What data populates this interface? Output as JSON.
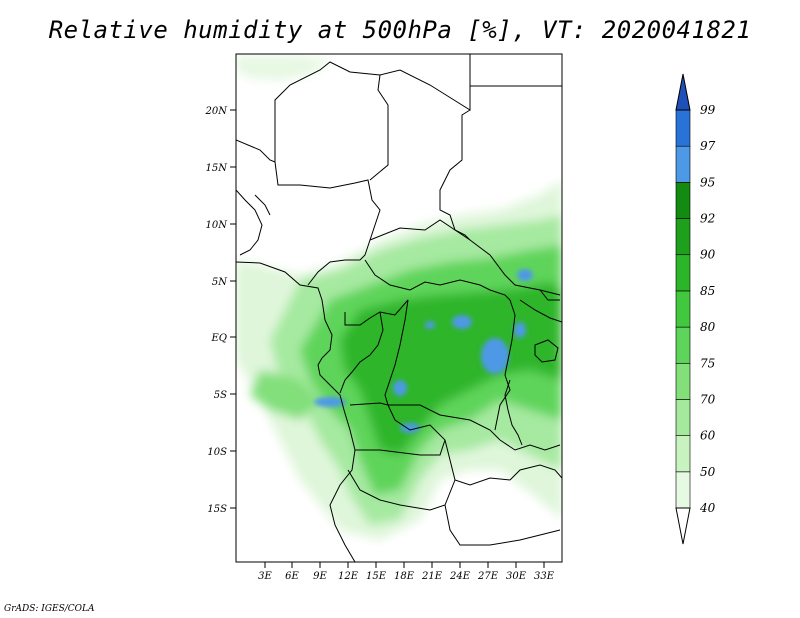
{
  "title": "Relative humidity at 500hPa [%], VT: 2020041821",
  "credit": "GrADS: IGES/COLA",
  "map": {
    "lat_labels": [
      "20N",
      "15N",
      "10N",
      "5N",
      "EQ",
      "5S",
      "10S",
      "15S"
    ],
    "lon_labels": [
      "3E",
      "6E",
      "9E",
      "12E",
      "15E",
      "18E",
      "21E",
      "24E",
      "27E",
      "30E",
      "33E"
    ]
  },
  "colorbar": {
    "levels": [
      "40",
      "50",
      "60",
      "70",
      "75",
      "80",
      "85",
      "90",
      "92",
      "95",
      "97",
      "99"
    ],
    "colors": [
      "#ffffff",
      "#e6f9e2",
      "#c8f2c0",
      "#a4e99c",
      "#82df7a",
      "#5ed45a",
      "#42c83e",
      "#2db52a",
      "#1fa01c",
      "#138a12",
      "#4d99e6",
      "#2a73d6",
      "#1f4fb8"
    ]
  }
}
